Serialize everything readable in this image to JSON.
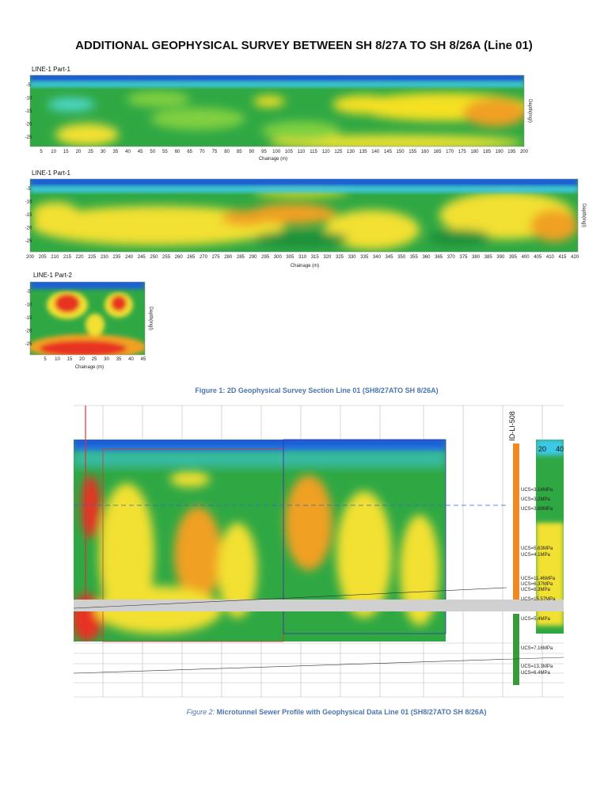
{
  "title": "ADDITIONAL GEOPHYSICAL SURVEY BETWEEN SH 8/27A TO SH 8/26A (Line 01)",
  "figure1": {
    "panels": [
      {
        "label": "LINE-1 Part-1",
        "x_axis_label": "Chainage (m)",
        "depth_axis_label": "Depth(mgl)",
        "depth_ticks": [
          -5,
          -10,
          -15,
          -20,
          -25
        ],
        "x_ticks": [
          5,
          10,
          15,
          20,
          25,
          30,
          35,
          40,
          45,
          50,
          55,
          60,
          65,
          70,
          75,
          80,
          85,
          90,
          95,
          100,
          105,
          110,
          115,
          120,
          125,
          130,
          135,
          140,
          145,
          150,
          155,
          160,
          165,
          170,
          175,
          180,
          185,
          190,
          195,
          200
        ]
      },
      {
        "label": "LINE-1 Part-1",
        "x_axis_label": "Chainage (m)",
        "depth_axis_label": "Depth(mgl)",
        "depth_ticks": [
          -5,
          -10,
          -15,
          -20,
          -25
        ],
        "x_ticks": [
          200,
          205,
          210,
          215,
          220,
          225,
          230,
          235,
          240,
          245,
          250,
          255,
          260,
          265,
          270,
          275,
          280,
          285,
          290,
          295,
          300,
          305,
          310,
          315,
          320,
          325,
          330,
          335,
          340,
          345,
          350,
          355,
          360,
          365,
          370,
          375,
          380,
          385,
          390,
          395,
          400,
          405,
          410,
          415,
          420
        ]
      },
      {
        "label": "LINE-1 Part-2",
        "x_axis_label": "Chainage (m)",
        "depth_axis_label": "Depth(mgl)",
        "depth_ticks": [
          -5,
          -10,
          -15,
          -20,
          -25
        ],
        "x_ticks": [
          5,
          10,
          15,
          20,
          25,
          30,
          35,
          40,
          45
        ]
      }
    ],
    "caption": "Figure 1: 2D Geophysical Survey Section Line 01 (SH8/27ATO SH 8/26A)"
  },
  "figure2": {
    "borehole_id": "ID-LI-508",
    "scale_labels": [
      "20",
      "40"
    ],
    "ucs_labels": [
      "UCS=3.14MPa",
      "UCS=3.2MPa",
      "UCS=3.69MPa",
      "UCS=5.63MPa",
      "UCS=4.1MPa",
      "UCS=11.46MPa",
      "UCS=6.37MPa",
      "UCS=8.3MPa",
      "UCS=15.57MPa",
      "UCS=5.4MPa",
      "UCS=7.16MPa",
      "UCS=13.3MPa",
      "UCS=6.4MPa"
    ],
    "caption_prefix": "Figure 2:",
    "caption_text": "Microtunnel Sewer Profile with Geophysical Data Line 01 (SH8/27ATO SH 8/26A)"
  }
}
